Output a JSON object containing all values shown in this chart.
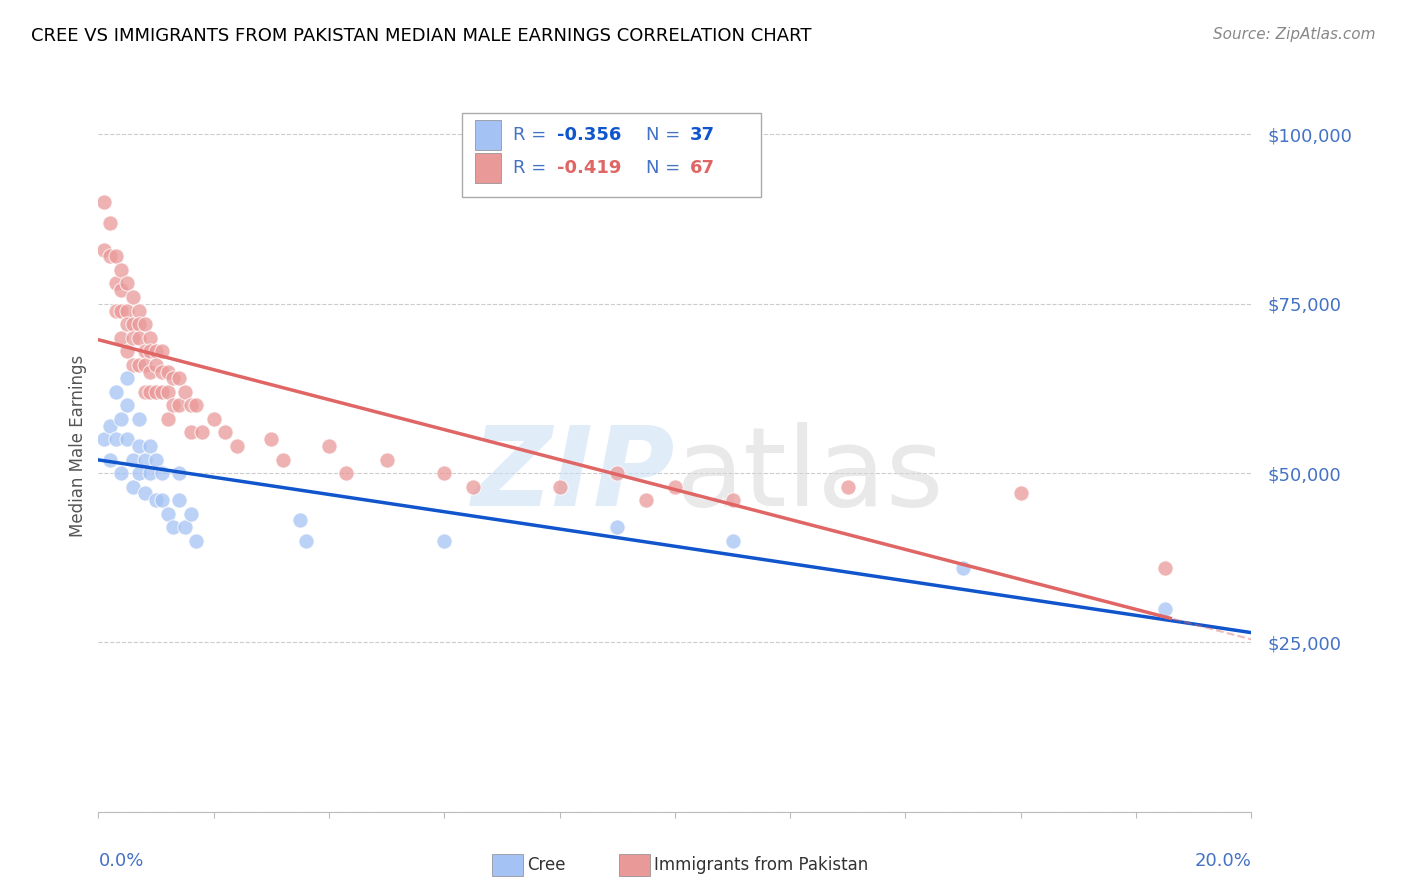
{
  "title": "CREE VS IMMIGRANTS FROM PAKISTAN MEDIAN MALE EARNINGS CORRELATION CHART",
  "source": "Source: ZipAtlas.com",
  "ylabel": "Median Male Earnings",
  "yticks": [
    0,
    25000,
    50000,
    75000,
    100000
  ],
  "ytick_labels": [
    "",
    "$25,000",
    "$50,000",
    "$75,000",
    "$100,000"
  ],
  "xmin": 0.0,
  "xmax": 0.2,
  "ymin": 0,
  "ymax": 108000,
  "legend_r1": "R = -0.356",
  "legend_n1": "N = 37",
  "legend_r2": "R = -0.419",
  "legend_n2": "N = 67",
  "cree_color": "#a4c2f4",
  "pakistan_color": "#ea9999",
  "cree_line_color": "#1155cc",
  "pakistan_line_color": "#e06666",
  "axis_color": "#4472c4",
  "grid_color": "#cccccc",
  "background_color": "#ffffff",
  "cree_scatter_x": [
    0.001,
    0.002,
    0.002,
    0.003,
    0.003,
    0.004,
    0.004,
    0.005,
    0.005,
    0.005,
    0.006,
    0.006,
    0.007,
    0.007,
    0.007,
    0.008,
    0.008,
    0.009,
    0.009,
    0.01,
    0.01,
    0.011,
    0.011,
    0.012,
    0.013,
    0.014,
    0.014,
    0.015,
    0.016,
    0.017,
    0.035,
    0.036,
    0.06,
    0.09,
    0.11,
    0.15,
    0.185
  ],
  "cree_scatter_y": [
    55000,
    57000,
    52000,
    62000,
    55000,
    58000,
    50000,
    64000,
    60000,
    55000,
    52000,
    48000,
    58000,
    54000,
    50000,
    52000,
    47000,
    54000,
    50000,
    52000,
    46000,
    50000,
    46000,
    44000,
    42000,
    50000,
    46000,
    42000,
    44000,
    40000,
    43000,
    40000,
    40000,
    42000,
    40000,
    36000,
    30000
  ],
  "pakistan_scatter_x": [
    0.001,
    0.001,
    0.002,
    0.002,
    0.003,
    0.003,
    0.003,
    0.004,
    0.004,
    0.004,
    0.004,
    0.005,
    0.005,
    0.005,
    0.005,
    0.006,
    0.006,
    0.006,
    0.006,
    0.007,
    0.007,
    0.007,
    0.007,
    0.008,
    0.008,
    0.008,
    0.008,
    0.009,
    0.009,
    0.009,
    0.009,
    0.01,
    0.01,
    0.01,
    0.011,
    0.011,
    0.011,
    0.012,
    0.012,
    0.012,
    0.013,
    0.013,
    0.014,
    0.014,
    0.015,
    0.016,
    0.016,
    0.017,
    0.018,
    0.02,
    0.022,
    0.024,
    0.03,
    0.032,
    0.04,
    0.043,
    0.05,
    0.06,
    0.065,
    0.08,
    0.09,
    0.095,
    0.1,
    0.11,
    0.13,
    0.16,
    0.185
  ],
  "pakistan_scatter_y": [
    90000,
    83000,
    87000,
    82000,
    82000,
    78000,
    74000,
    80000,
    77000,
    74000,
    70000,
    78000,
    74000,
    72000,
    68000,
    76000,
    72000,
    70000,
    66000,
    74000,
    72000,
    70000,
    66000,
    72000,
    68000,
    66000,
    62000,
    70000,
    68000,
    65000,
    62000,
    68000,
    66000,
    62000,
    68000,
    65000,
    62000,
    65000,
    62000,
    58000,
    64000,
    60000,
    64000,
    60000,
    62000,
    60000,
    56000,
    60000,
    56000,
    58000,
    56000,
    54000,
    55000,
    52000,
    54000,
    50000,
    52000,
    50000,
    48000,
    48000,
    50000,
    46000,
    48000,
    46000,
    48000,
    47000,
    36000
  ]
}
